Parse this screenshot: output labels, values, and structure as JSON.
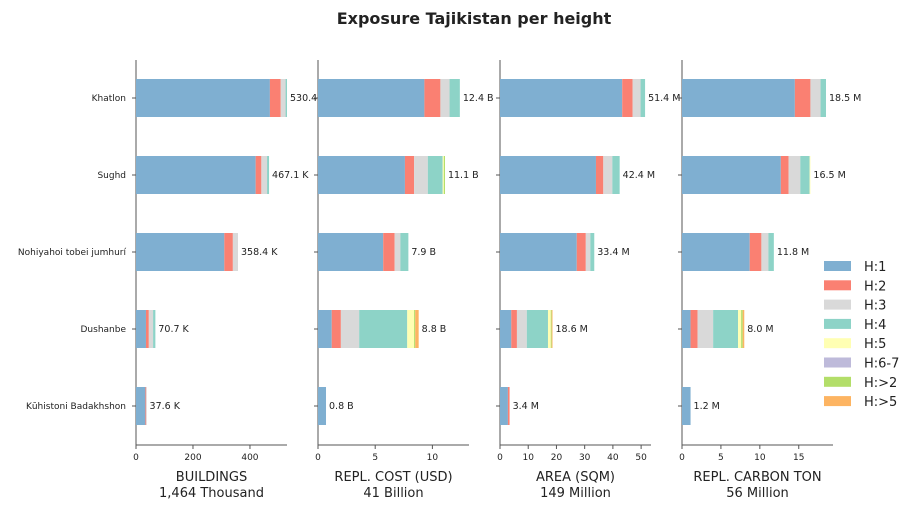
{
  "chart_data": {
    "type": "bar",
    "orientation": "horizontal",
    "stacked": true,
    "title": "Exposure Tajikistan per height",
    "categories": [
      "Khatlon",
      "Sughd",
      "Nohiyahoi tobei jumhurí",
      "Dushanbe",
      "Kūhistoni Badakhshon"
    ],
    "legend": {
      "position": "right",
      "items": [
        {
          "name": "H:1",
          "color": "#7fafd1"
        },
        {
          "name": "H:2",
          "color": "#fa8072"
        },
        {
          "name": "H:3",
          "color": "#d9d9d9"
        },
        {
          "name": "H:4",
          "color": "#8dd3c7"
        },
        {
          "name": "H:5",
          "color": "#ffffb3"
        },
        {
          "name": "H:6-7",
          "color": "#bebada"
        },
        {
          "name": "H:>2",
          "color": "#b3de69"
        },
        {
          "name": "H:>5",
          "color": "#fdb462"
        }
      ]
    },
    "panels": [
      {
        "xlabel_line1": "BUILDINGS",
        "xlabel_line2": "1,464 Thousand",
        "xlim": [
          0,
          530
        ],
        "ticks": [
          0,
          200,
          400
        ],
        "tick_labels": [
          "0",
          "200",
          "400"
        ],
        "value_labels": [
          "530.4",
          "467.1 K",
          "358.4 K",
          "70.7 K",
          "37.6 K"
        ],
        "values": [
          [
            470,
            38,
            17,
            5,
            0,
            0,
            0,
            0
          ],
          [
            420,
            20,
            20,
            7,
            0,
            0,
            0,
            0
          ],
          [
            310,
            30,
            18,
            0,
            0,
            0,
            0,
            0
          ],
          [
            35,
            10,
            15,
            8,
            0,
            0,
            0,
            0
          ],
          [
            33,
            3,
            1,
            0,
            0,
            0,
            0,
            0
          ]
        ]
      },
      {
        "xlabel_line1": "REPL. COST (USD)",
        "xlabel_line2": "41 Billion",
        "xlim": [
          0,
          13.2
        ],
        "ticks": [
          0,
          5,
          10
        ],
        "tick_labels": [
          "0",
          "5",
          "10"
        ],
        "value_labels": [
          "12.4 B",
          "11.1 B",
          "7.9 B",
          "8.8 B",
          "0.8 B"
        ],
        "values": [
          [
            9.3,
            1.4,
            0.8,
            0.9,
            0,
            0,
            0,
            0
          ],
          [
            7.6,
            0.8,
            1.2,
            1.3,
            0.1,
            0,
            0.1,
            0
          ],
          [
            5.7,
            1.0,
            0.5,
            0.7,
            0,
            0,
            0,
            0
          ],
          [
            1.2,
            0.8,
            1.6,
            4.2,
            0.6,
            0,
            0.1,
            0.3
          ],
          [
            0.7,
            0,
            0,
            0,
            0,
            0,
            0,
            0
          ]
        ]
      },
      {
        "xlabel_line1": "AREA (SQM)",
        "xlabel_line2": "149 Million",
        "xlim": [
          0,
          53.5
        ],
        "ticks": [
          0,
          10,
          20,
          30,
          40,
          50
        ],
        "tick_labels": [
          "0",
          "10",
          "20",
          "30",
          "40",
          "50"
        ],
        "value_labels": [
          "51.4 M",
          "42.4 M",
          "33.4 M",
          "18.6 M",
          "3.4 M"
        ],
        "values": [
          [
            43.3,
            3.7,
            2.8,
            1.6,
            0,
            0,
            0,
            0
          ],
          [
            34.0,
            2.6,
            3.2,
            2.6,
            0,
            0,
            0,
            0
          ],
          [
            27.2,
            3.2,
            1.6,
            1.4,
            0,
            0,
            0,
            0
          ],
          [
            4.0,
            2.0,
            3.5,
            7.5,
            1.0,
            0,
            0.3,
            0.3
          ],
          [
            2.8,
            0.6,
            0,
            0,
            0,
            0,
            0,
            0
          ]
        ]
      },
      {
        "xlabel_line1": "REPL. CARBON TON",
        "xlabel_line2": "56 Million",
        "xlim": [
          0,
          19.4
        ],
        "ticks": [
          0,
          5,
          10,
          15
        ],
        "tick_labels": [
          "0",
          "5",
          "10",
          "15"
        ],
        "value_labels": [
          "18.5 M",
          "16.5 M",
          "11.8 M",
          "8.0 M",
          "1.2 M"
        ],
        "values": [
          [
            14.5,
            2.0,
            1.3,
            0.7,
            0,
            0,
            0,
            0
          ],
          [
            12.7,
            1.0,
            1.5,
            1.2,
            0.1,
            0,
            0,
            0
          ],
          [
            8.7,
            1.5,
            0.9,
            0.7,
            0,
            0,
            0,
            0
          ],
          [
            1.1,
            0.9,
            2.0,
            3.2,
            0.4,
            0,
            0.2,
            0.2
          ],
          [
            1.1,
            0,
            0,
            0,
            0,
            0,
            0,
            0
          ]
        ]
      }
    ]
  }
}
